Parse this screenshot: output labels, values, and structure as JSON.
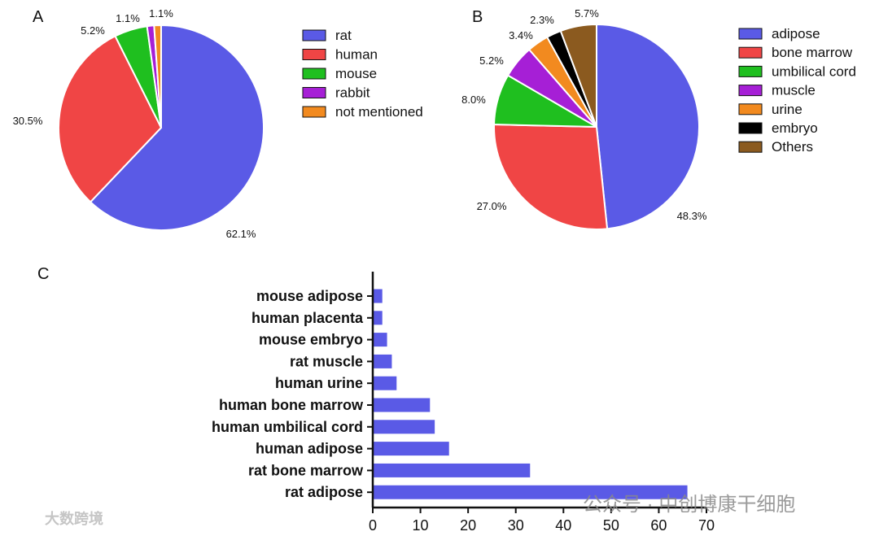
{
  "panels": {
    "a": "A",
    "b": "B",
    "c": "C"
  },
  "chart_data": [
    {
      "type": "pie",
      "panel": "A",
      "title": "",
      "labels": [
        "rat",
        "human",
        "mouse",
        "rabbit",
        "not mentioned"
      ],
      "values": [
        62.1,
        30.5,
        5.2,
        1.1,
        1.1
      ],
      "value_labels": [
        "62.1%",
        "30.5%",
        "5.2%",
        "1.1%",
        "1.1%"
      ],
      "colors": [
        "#5a5ae6",
        "#f04545",
        "#1fbf1f",
        "#a61fd6",
        "#f28a1f"
      ],
      "legend_position": "right"
    },
    {
      "type": "pie",
      "panel": "B",
      "title": "",
      "labels": [
        "adipose",
        "bone marrow",
        "umbilical cord",
        "muscle",
        "urine",
        "embryo",
        "Others"
      ],
      "values": [
        48.3,
        27.0,
        8.0,
        5.2,
        3.4,
        2.3,
        5.7
      ],
      "value_labels": [
        "48.3%",
        "27.0%",
        "8.0%",
        "5.2%",
        "3.4%",
        "2.3%",
        "5.7%"
      ],
      "colors": [
        "#5a5ae6",
        "#f04545",
        "#1fbf1f",
        "#a61fd6",
        "#f28a1f",
        "#000000",
        "#8b5a1f"
      ],
      "legend_position": "right"
    },
    {
      "type": "bar",
      "orientation": "horizontal",
      "panel": "C",
      "title": "",
      "categories": [
        "mouse adipose",
        "human placenta",
        "mouse embryo",
        "rat muscle",
        "human urine",
        "human bone marrow",
        "human umbilical cord",
        "human adipose",
        "rat bone marrow",
        "rat adipose"
      ],
      "values": [
        2,
        2,
        3,
        4,
        5,
        12,
        13,
        16,
        33,
        66
      ],
      "xlim": [
        0,
        70
      ],
      "xticks": [
        "0",
        "10",
        "20",
        "30",
        "40",
        "50",
        "60",
        "70"
      ],
      "xlabel": "",
      "ylabel": "",
      "color": "#5a5ae6"
    }
  ],
  "watermark": {
    "left": "大数跨境",
    "right": "公众号 · 中创博康干细胞"
  }
}
